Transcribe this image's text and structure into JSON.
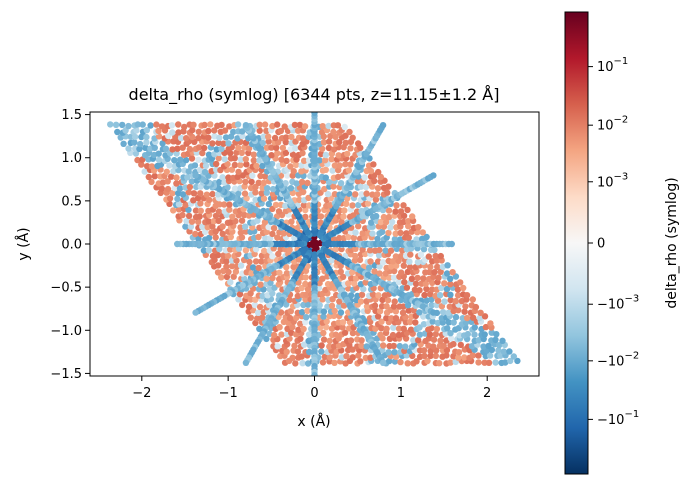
{
  "chart_data": {
    "type": "scatter",
    "title": "delta_rho (symlog)  [6344 pts, z=11.15±1.2 Å]",
    "xlabel": "x (Å)",
    "ylabel": "y (Å)",
    "xlim": [
      -2.6,
      2.6
    ],
    "ylim": [
      -1.53,
      1.53
    ],
    "xticks": [
      -2,
      -1,
      0,
      1,
      2
    ],
    "xtick_labels": [
      "−2",
      "−1",
      "0",
      "1",
      "2"
    ],
    "yticks": [
      -1.5,
      -1.0,
      -0.5,
      0.0,
      0.5,
      1.0,
      1.5
    ],
    "ytick_labels": [
      "−1.5",
      "−1.0",
      "−0.5",
      "0.0",
      "0.5",
      "1.0",
      "1.5"
    ],
    "grid": false,
    "point_count": 6344,
    "domain_shape": "parallelogram",
    "domain_corners": [
      [
        -2.35,
        1.37
      ],
      [
        0.35,
        1.37
      ],
      [
        2.35,
        -1.37
      ],
      [
        -0.35,
        -1.37
      ]
    ],
    "center_value": "positive",
    "colorbar": {
      "label": "delta_rho (symlog)",
      "scale": "symlog",
      "linthresh": 0.0001,
      "range": [
        -0.85,
        0.85
      ],
      "ticks": [
        0.1,
        0.01,
        0.001,
        0,
        -0.001,
        -0.01,
        -0.1
      ],
      "tick_labels": [
        {
          "base": "10",
          "exp": "−1"
        },
        {
          "base": "10",
          "exp": "−2"
        },
        {
          "base": "10",
          "exp": "−3"
        },
        {
          "base": "0",
          "exp": ""
        },
        {
          "base": "−10",
          "exp": "−3"
        },
        {
          "base": "−10",
          "exp": "−2"
        },
        {
          "base": "−10",
          "exp": "−1"
        }
      ],
      "cmap": "RdBu_r",
      "colors": [
        "#053061",
        "#2166ac",
        "#4393c3",
        "#92c5de",
        "#d1e5f0",
        "#f7f7f7",
        "#fddbc7",
        "#f4a582",
        "#d6604d",
        "#b2182b",
        "#67001f"
      ]
    }
  }
}
